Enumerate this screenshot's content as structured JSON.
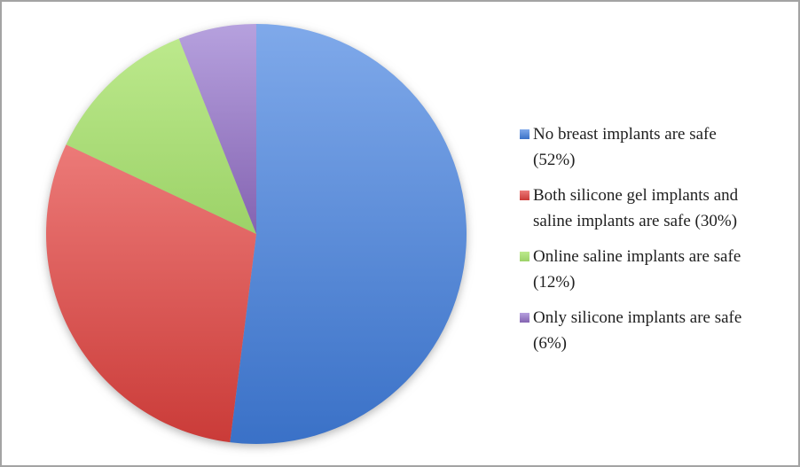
{
  "chart_data": {
    "type": "pie",
    "title": "",
    "categories": [
      "No breast implants are safe",
      "Both silicone gel implants and saline implants are safe",
      "Online saline implants are safe",
      "Only silicone implants are safe"
    ],
    "values": [
      52,
      30,
      12,
      6
    ],
    "unit": "percent",
    "start_angle_deg": 0,
    "direction": "clockwise",
    "legend_position": "right",
    "slices": [
      {
        "label": "No breast implants are safe",
        "pct": 52,
        "color_top": "#7fa9ea",
        "color_bottom": "#3a71c7"
      },
      {
        "label": "Both silicone gel implants and saline implants are safe",
        "pct": 30,
        "color_top": "#ec7a78",
        "color_bottom": "#ca3b38"
      },
      {
        "label": "Online saline implants are safe",
        "pct": 12,
        "color_top": "#bce98c",
        "color_bottom": "#9cd268"
      },
      {
        "label": "Only silicone implants are safe",
        "pct": 6,
        "color_top": "#b6a1de",
        "color_bottom": "#8463b1"
      }
    ]
  },
  "legend": {
    "items": [
      {
        "text": "No breast implants are safe\n(52%)"
      },
      {
        "text": "Both silicone gel implants and\nsaline implants are safe (30%)"
      },
      {
        "text": "Online saline implants are safe\n(12%)"
      },
      {
        "text": "Only silicone implants are safe\n(6%)"
      }
    ]
  },
  "colors": {
    "background": "#ffffff",
    "frame_border": "#a3a3a3",
    "legend_text": "#1f1f1f"
  }
}
